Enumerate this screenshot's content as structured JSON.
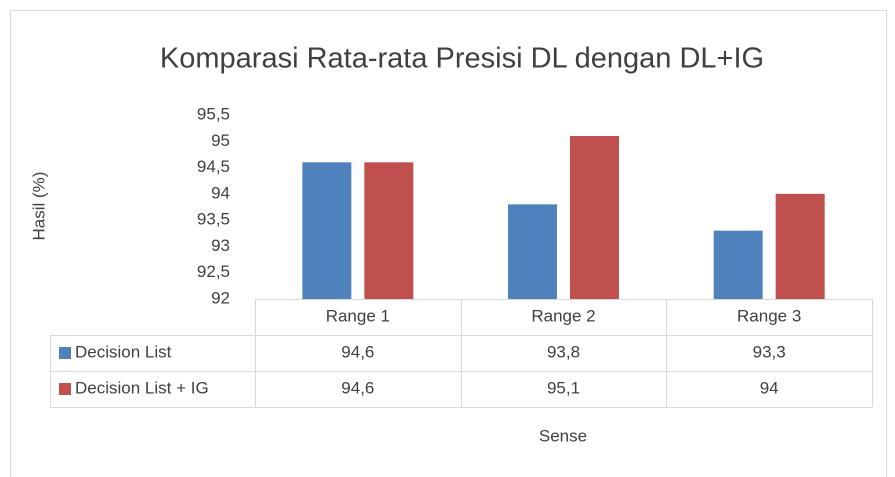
{
  "chart_data": {
    "type": "bar",
    "title": "Komparasi Rata-rata Presisi DL dengan DL+IG",
    "y_label": "Hasil (%)",
    "x_label": "Sense",
    "categories": [
      "Range 1",
      "Range 2",
      "Range 3"
    ],
    "series": [
      {
        "name": "Decision List",
        "color": "#4f81bd",
        "values": [
          94.6,
          93.8,
          93.3
        ],
        "value_labels": [
          "94,6",
          "93,8",
          "93,3"
        ]
      },
      {
        "name": "Decision List + IG",
        "color": "#c0504d",
        "values": [
          94.6,
          95.1,
          94
        ],
        "value_labels": [
          "94,6",
          "95,1",
          "94"
        ]
      }
    ],
    "ylim": [
      92,
      95.5
    ],
    "yticks": [
      92,
      {
        "value": 92.5,
        "label": "92,5"
      },
      93,
      {
        "value": 93.5,
        "label": "93,5"
      },
      94,
      {
        "value": 94.5,
        "label": "94,5"
      },
      95,
      {
        "value": 95.5,
        "label": "95,5"
      }
    ]
  }
}
